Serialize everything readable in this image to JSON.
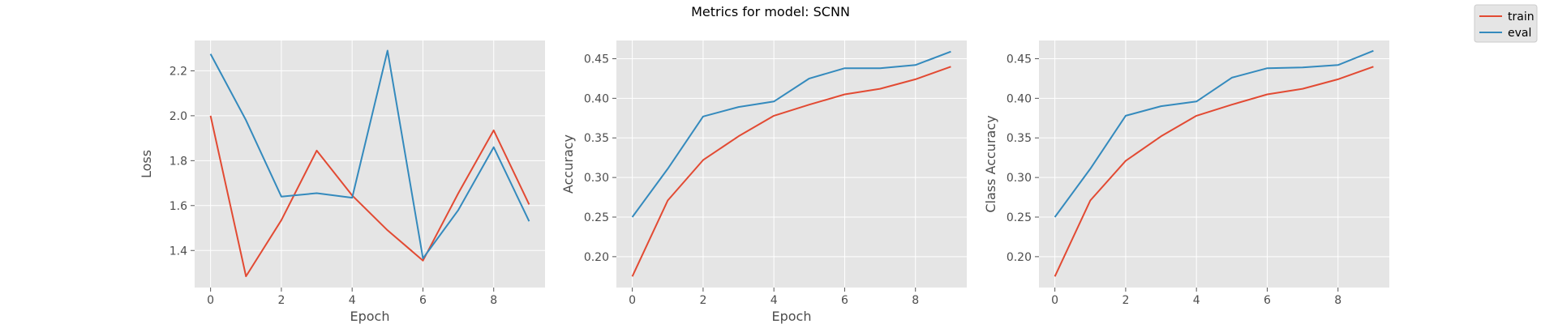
{
  "figure": {
    "title": "Metrics for model: SCNN"
  },
  "legend": {
    "placement": "top-right",
    "entries": [
      {
        "name": "train",
        "color": "#E24A33"
      },
      {
        "name": "eval",
        "color": "#348ABD"
      }
    ]
  },
  "style": {
    "axes_background": "#E5E5E5",
    "grid_color": "#FFFFFF",
    "grid": true
  },
  "chart_data": [
    {
      "type": "line",
      "xlabel": "Epoch",
      "ylabel": "Loss",
      "x": [
        0,
        1,
        2,
        3,
        4,
        5,
        6,
        7,
        8,
        9
      ],
      "xlim": [
        -0.45,
        9.45
      ],
      "ylim": [
        1.235,
        2.335
      ],
      "xticks": [
        0,
        2,
        4,
        6,
        8
      ],
      "yticks": [
        1.4,
        1.6,
        1.8,
        2.0,
        2.2
      ],
      "ytick_labels": [
        "1.4",
        "1.6",
        "1.8",
        "2.0",
        "2.2"
      ],
      "series": [
        {
          "name": "train",
          "color": "#E24A33",
          "values": [
            2.0,
            1.285,
            1.535,
            1.845,
            1.645,
            1.49,
            1.355,
            1.655,
            1.935,
            1.605
          ]
        },
        {
          "name": "eval",
          "color": "#348ABD",
          "values": [
            2.275,
            1.98,
            1.64,
            1.655,
            1.635,
            2.29,
            1.365,
            1.58,
            1.86,
            1.53
          ]
        }
      ]
    },
    {
      "type": "line",
      "xlabel": "Epoch",
      "ylabel": "Accuracy",
      "x": [
        0,
        1,
        2,
        3,
        4,
        5,
        6,
        7,
        8,
        9
      ],
      "xlim": [
        -0.45,
        9.45
      ],
      "ylim": [
        0.161,
        0.473
      ],
      "xticks": [
        0,
        2,
        4,
        6,
        8
      ],
      "yticks": [
        0.2,
        0.25,
        0.3,
        0.35,
        0.4,
        0.45
      ],
      "ytick_labels": [
        "0.20",
        "0.25",
        "0.30",
        "0.35",
        "0.40",
        "0.45"
      ],
      "series": [
        {
          "name": "train",
          "color": "#E24A33",
          "values": [
            0.175,
            0.271,
            0.322,
            0.352,
            0.378,
            0.392,
            0.405,
            0.412,
            0.424,
            0.44
          ]
        },
        {
          "name": "eval",
          "color": "#348ABD",
          "values": [
            0.25,
            0.311,
            0.377,
            0.389,
            0.396,
            0.425,
            0.438,
            0.438,
            0.442,
            0.459
          ]
        }
      ]
    },
    {
      "type": "line",
      "xlabel": "",
      "ylabel": "Class Accuracy",
      "x": [
        0,
        1,
        2,
        3,
        4,
        5,
        6,
        7,
        8,
        9
      ],
      "xlim": [
        -0.45,
        9.45
      ],
      "ylim": [
        0.161,
        0.473
      ],
      "xticks": [
        0,
        2,
        4,
        6,
        8
      ],
      "yticks": [
        0.2,
        0.25,
        0.3,
        0.35,
        0.4,
        0.45
      ],
      "ytick_labels": [
        "0.20",
        "0.25",
        "0.30",
        "0.35",
        "0.40",
        "0.45"
      ],
      "series": [
        {
          "name": "train",
          "color": "#E24A33",
          "values": [
            0.175,
            0.271,
            0.321,
            0.352,
            0.378,
            0.392,
            0.405,
            0.412,
            0.424,
            0.44
          ]
        },
        {
          "name": "eval",
          "color": "#348ABD",
          "values": [
            0.25,
            0.311,
            0.378,
            0.39,
            0.396,
            0.426,
            0.438,
            0.439,
            0.442,
            0.46
          ]
        }
      ]
    }
  ]
}
